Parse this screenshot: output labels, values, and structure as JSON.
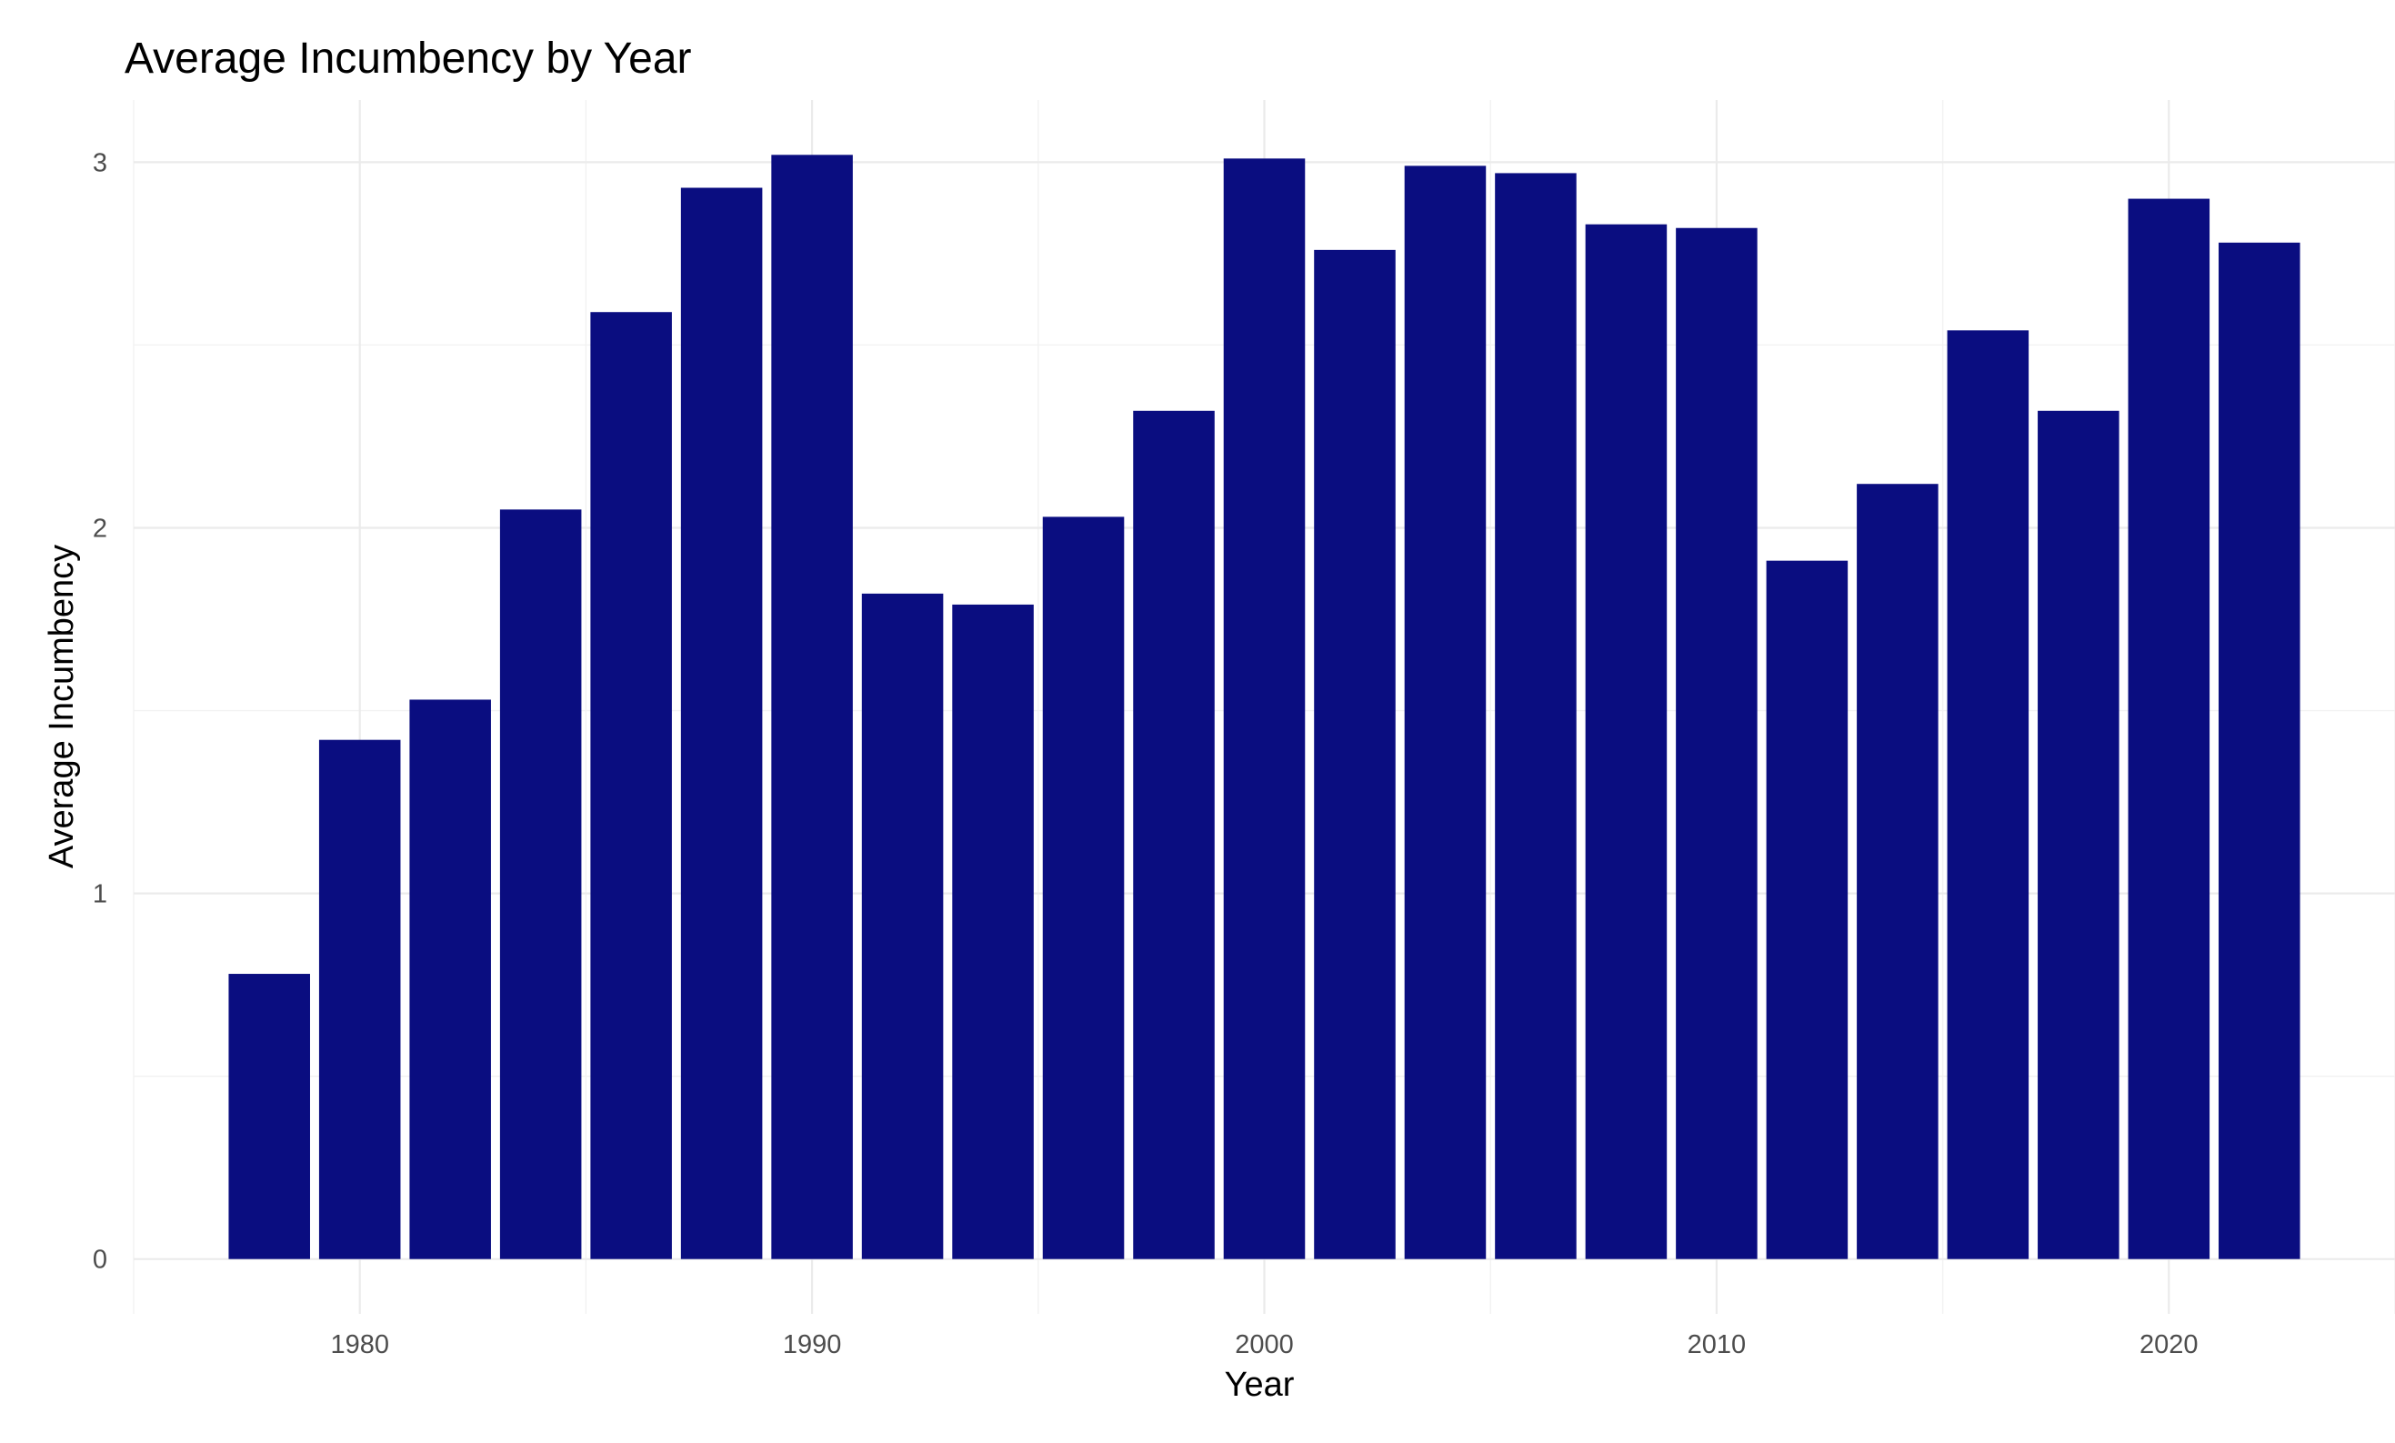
{
  "chart_data": {
    "type": "bar",
    "title": "Average Incumbency by Year",
    "xlabel": "Year",
    "ylabel": "Average Incumbency",
    "categories": [
      1978,
      1980,
      1982,
      1984,
      1986,
      1988,
      1990,
      1992,
      1994,
      1996,
      1998,
      2000,
      2002,
      2004,
      2006,
      2008,
      2010,
      2012,
      2014,
      2016,
      2018,
      2020,
      2022
    ],
    "values": [
      0.78,
      1.42,
      1.53,
      2.05,
      2.59,
      2.93,
      3.02,
      1.82,
      1.79,
      2.03,
      2.32,
      3.01,
      2.76,
      2.99,
      2.97,
      2.83,
      2.82,
      1.91,
      2.12,
      2.54,
      2.32,
      2.9,
      2.78
    ],
    "x_ticks": [
      "1980",
      "1990",
      "2000",
      "2010",
      "2020"
    ],
    "y_ticks": [
      "0",
      "1",
      "2",
      "3"
    ],
    "xlim": [
      1975,
      2025
    ],
    "ylim": [
      -0.15,
      3.17
    ],
    "bar_color": "#0a0d80",
    "grid": true,
    "legend": "none"
  }
}
